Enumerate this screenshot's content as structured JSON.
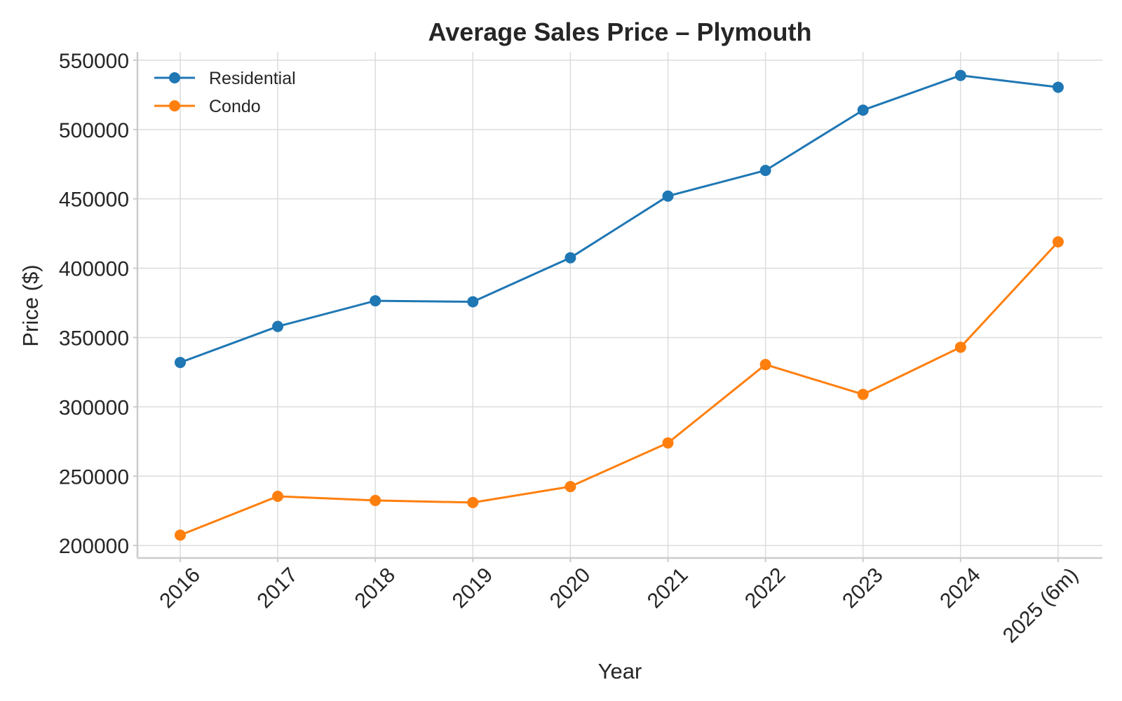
{
  "chart_data": {
    "type": "line",
    "title": "Average Sales Price – Plymouth",
    "xlabel": "Year",
    "ylabel": "Price ($)",
    "categories": [
      "2016",
      "2017",
      "2018",
      "2019",
      "2020",
      "2021",
      "2022",
      "2023",
      "2024",
      "2025 (6m)"
    ],
    "ylim": [
      191000,
      556000
    ],
    "yticks": [
      200000,
      250000,
      300000,
      350000,
      400000,
      450000,
      500000,
      550000
    ],
    "grid": true,
    "legend_position": "top-left",
    "series": [
      {
        "name": "Residential",
        "color": "#1f77b4",
        "values": [
          332000,
          358000,
          376500,
          375800,
          407500,
          452000,
          470500,
          514000,
          539000,
          530500
        ]
      },
      {
        "name": "Condo",
        "color": "#ff7f0e",
        "values": [
          207500,
          235500,
          232500,
          231000,
          242500,
          274000,
          330500,
          309000,
          343000,
          419000
        ]
      }
    ]
  }
}
